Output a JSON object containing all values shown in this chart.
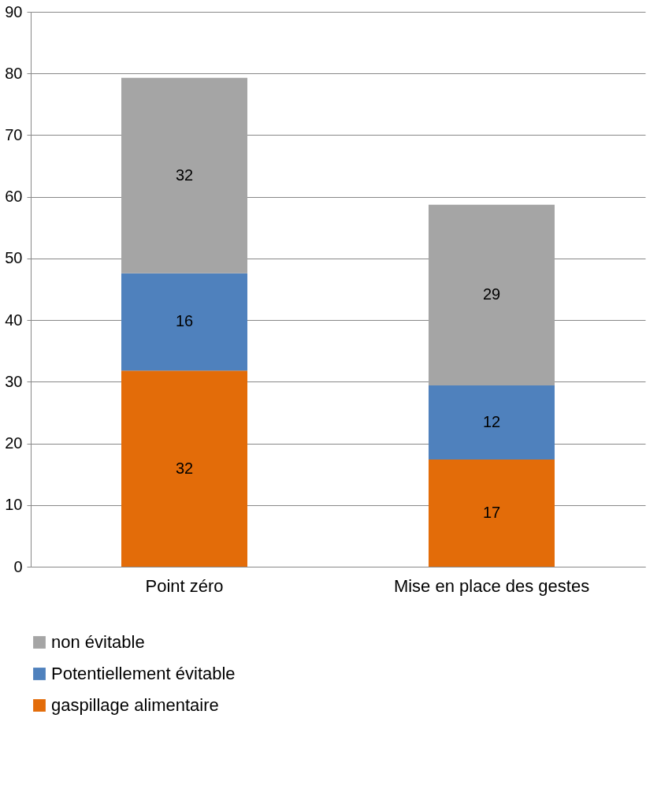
{
  "chart_data": {
    "type": "bar",
    "stacked": true,
    "categories": [
      "Point zéro",
      "Mise en place des gestes"
    ],
    "series": [
      {
        "name": "gaspillage alimentaire",
        "color": "#e36c09",
        "values": [
          31.8,
          17.4
        ],
        "value_labels": [
          "32",
          "17"
        ]
      },
      {
        "name": "Potentiellement évitable",
        "color": "#4f81bd",
        "values": [
          15.8,
          12.0
        ],
        "value_labels": [
          "16",
          "12"
        ]
      },
      {
        "name": "non évitable",
        "color": "#a5a5a5",
        "values": [
          31.7,
          29.3
        ],
        "value_labels": [
          "32",
          "29"
        ]
      }
    ],
    "ylim": [
      0,
      90
    ],
    "yticks": [
      0,
      10,
      20,
      30,
      40,
      50,
      60,
      70,
      80,
      90
    ],
    "grid": "y",
    "legend": "bottom"
  }
}
